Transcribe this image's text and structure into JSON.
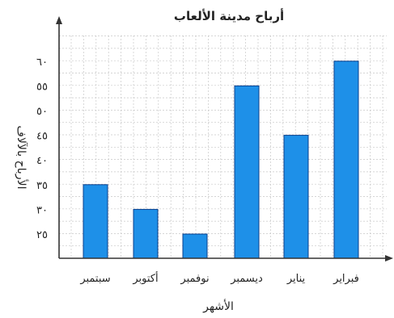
{
  "chart_data": {
    "type": "bar",
    "title": "أرباح مدينة الألعاب",
    "xlabel": "الأشهر",
    "ylabel": "الأرباح بالآلاف",
    "categories": [
      "سبتمبر",
      "أكتوبر",
      "نوفمبر",
      "ديسمبر",
      "يناير",
      "فبراير"
    ],
    "values": [
      35,
      30,
      25,
      55,
      45,
      60
    ],
    "yticks": [
      25,
      30,
      35,
      40,
      45,
      50,
      55,
      60
    ],
    "ytick_labels": [
      "٢٥",
      "٣٠",
      "٣٥",
      "٤٠",
      "٤٥",
      "٥٠",
      "٥٥",
      "٦٠"
    ],
    "ylim": [
      20,
      60
    ],
    "grid": true,
    "colors": {
      "bar": "#1e90e8",
      "bar_stroke": "#0b3f8c",
      "grid": "#c8c8c8",
      "axis": "#333333"
    }
  }
}
